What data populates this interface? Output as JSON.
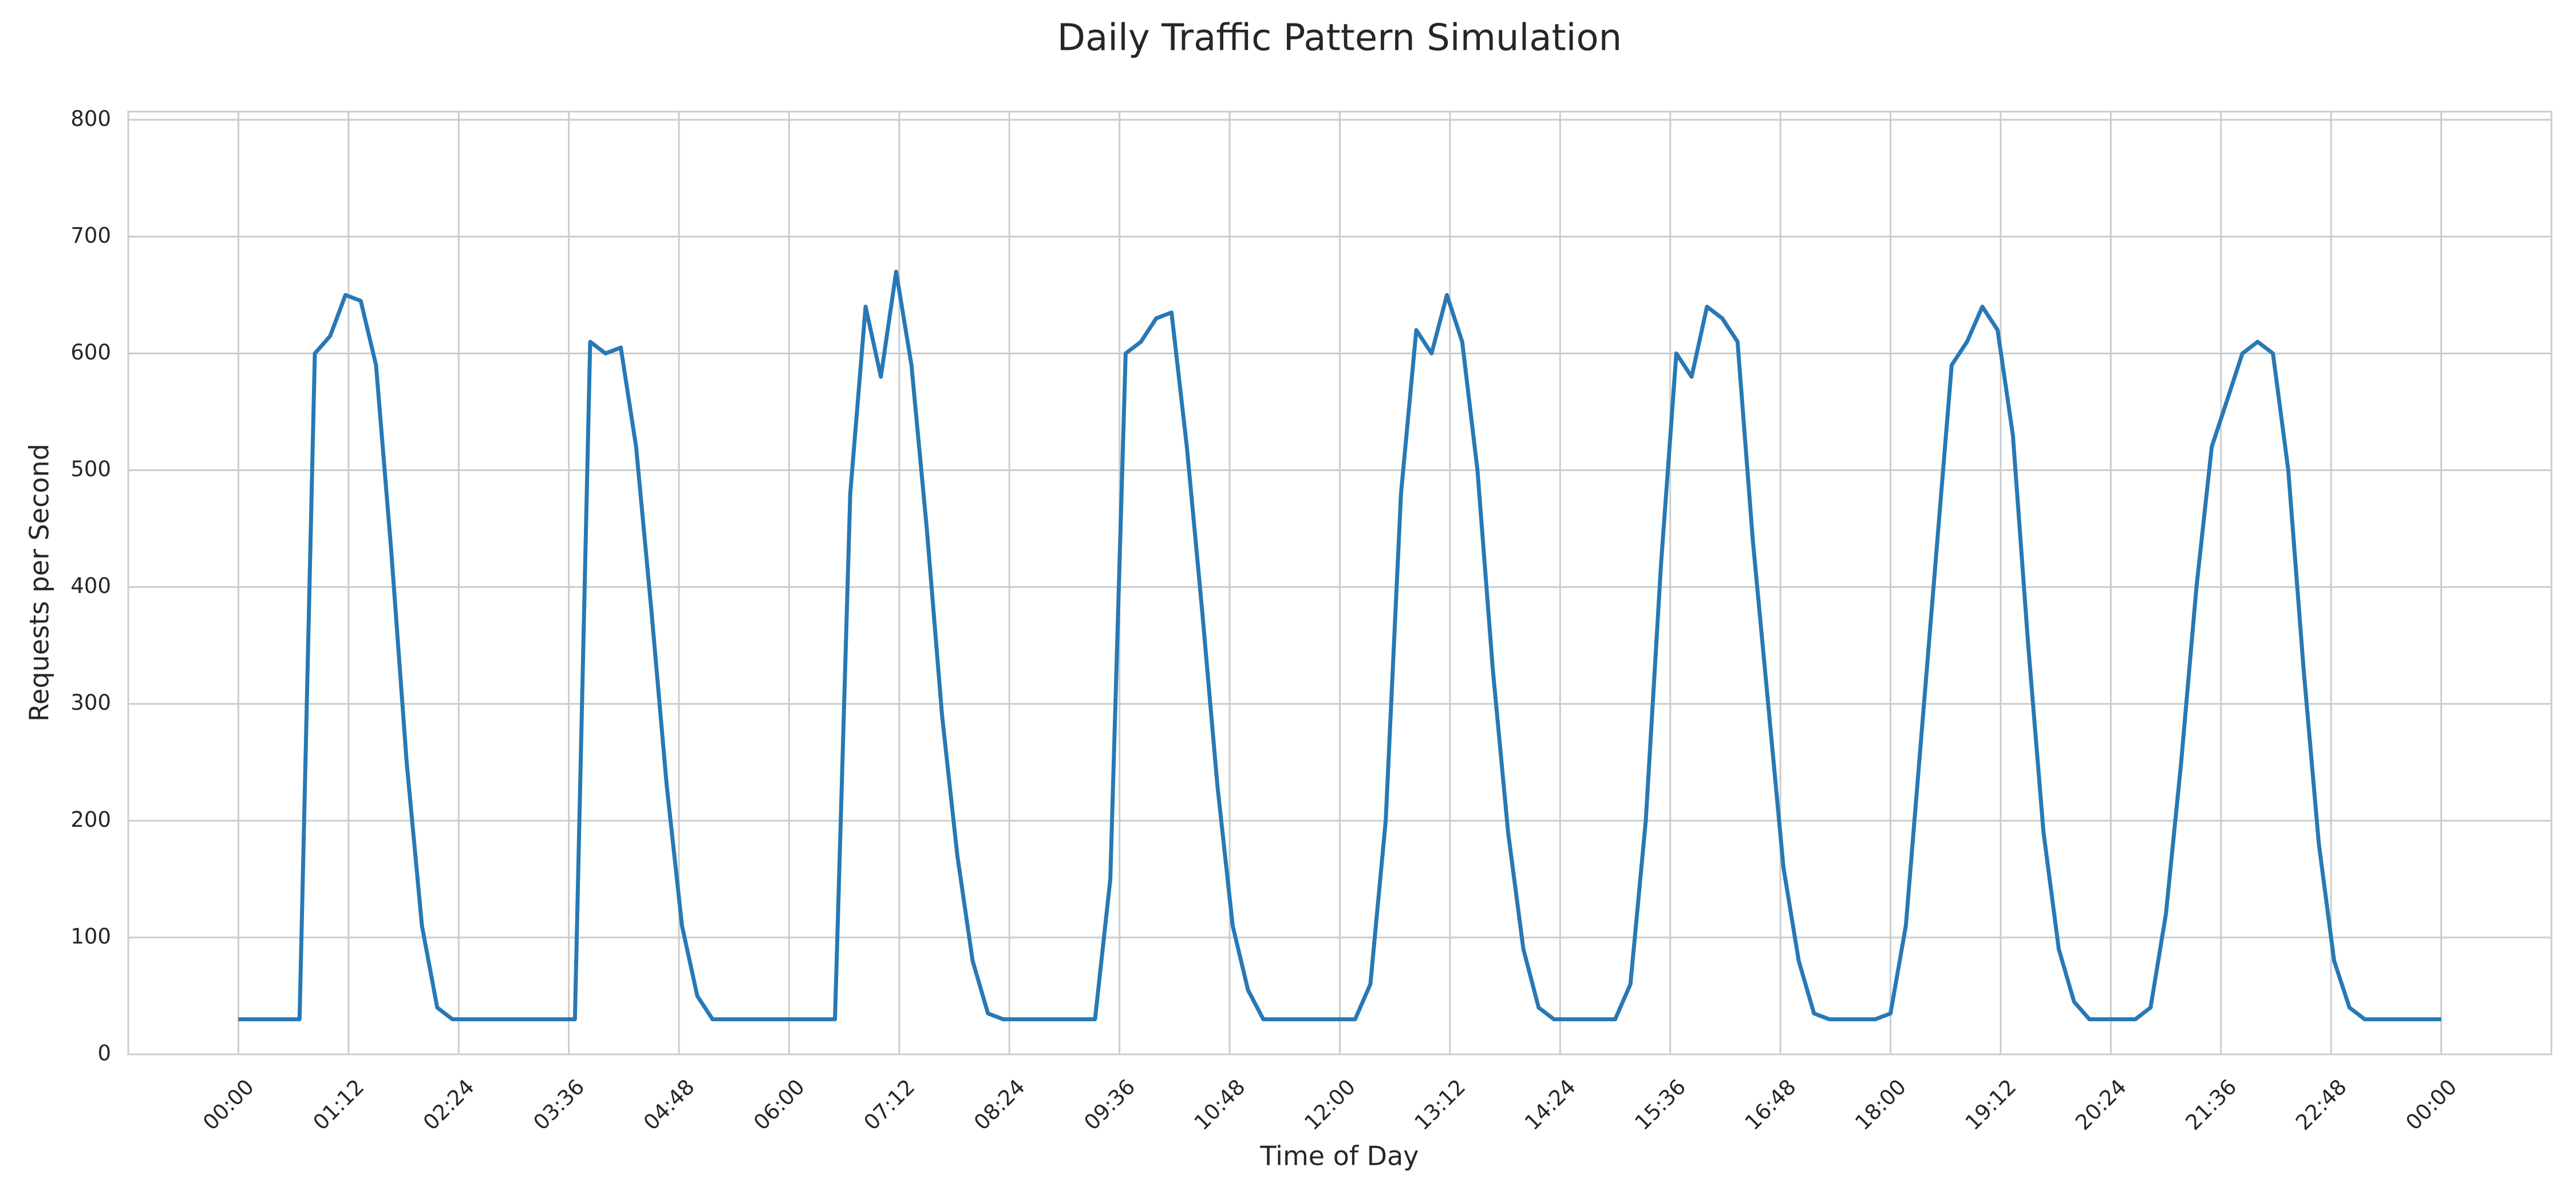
{
  "chart_data": {
    "type": "line",
    "title": "Daily Traffic Pattern Simulation",
    "x_label": "Time of Day",
    "y_label": "Requests per Second",
    "xlim": [
      -72,
      1512
    ],
    "ylim": [
      0,
      807
    ],
    "xticks": [
      {
        "value": 0,
        "label": "00:00"
      },
      {
        "value": 72,
        "label": "01:12"
      },
      {
        "value": 144,
        "label": "02:24"
      },
      {
        "value": 216,
        "label": "03:36"
      },
      {
        "value": 288,
        "label": "04:48"
      },
      {
        "value": 360,
        "label": "06:00"
      },
      {
        "value": 432,
        "label": "07:12"
      },
      {
        "value": 504,
        "label": "08:24"
      },
      {
        "value": 576,
        "label": "09:36"
      },
      {
        "value": 648,
        "label": "10:48"
      },
      {
        "value": 720,
        "label": "12:00"
      },
      {
        "value": 792,
        "label": "13:12"
      },
      {
        "value": 864,
        "label": "14:24"
      },
      {
        "value": 936,
        "label": "15:36"
      },
      {
        "value": 1008,
        "label": "16:48"
      },
      {
        "value": 1080,
        "label": "18:00"
      },
      {
        "value": 1152,
        "label": "19:12"
      },
      {
        "value": 1224,
        "label": "20:24"
      },
      {
        "value": 1296,
        "label": "21:36"
      },
      {
        "value": 1368,
        "label": "22:48"
      },
      {
        "value": 1440,
        "label": "00:00"
      }
    ],
    "yticks": [
      0,
      100,
      200,
      300,
      400,
      500,
      600,
      700,
      800
    ],
    "grid": true,
    "series": [
      {
        "name": "Requests per Second",
        "color": "#2878b5",
        "x": [
          0,
          10,
          20,
          30,
          40,
          50,
          60,
          70,
          80,
          90,
          100,
          110,
          120,
          130,
          140,
          150,
          160,
          170,
          180,
          190,
          200,
          210,
          220,
          230,
          240,
          250,
          260,
          270,
          280,
          290,
          300,
          310,
          320,
          330,
          340,
          350,
          360,
          370,
          380,
          390,
          400,
          410,
          420,
          430,
          440,
          450,
          460,
          470,
          480,
          490,
          500,
          510,
          520,
          530,
          540,
          550,
          560,
          570,
          580,
          590,
          600,
          610,
          620,
          630,
          640,
          650,
          660,
          670,
          680,
          690,
          700,
          710,
          720,
          730,
          740,
          750,
          760,
          770,
          780,
          790,
          800,
          810,
          820,
          830,
          840,
          850,
          860,
          870,
          880,
          890,
          900,
          910,
          920,
          930,
          940,
          950,
          960,
          970,
          980,
          990,
          1000,
          1010,
          1020,
          1030,
          1040,
          1050,
          1060,
          1070,
          1080,
          1090,
          1100,
          1110,
          1120,
          1130,
          1140,
          1150,
          1160,
          1170,
          1180,
          1190,
          1200,
          1210,
          1220,
          1230,
          1240,
          1250,
          1260,
          1270,
          1280,
          1290,
          1300,
          1310,
          1320,
          1330,
          1340,
          1350,
          1360,
          1370,
          1380,
          1390,
          1400,
          1410,
          1420,
          1430,
          1440
        ],
        "values": [
          30,
          30,
          30,
          30,
          30,
          600,
          615,
          650,
          645,
          590,
          430,
          250,
          110,
          40,
          30,
          30,
          30,
          30,
          30,
          30,
          30,
          30,
          30,
          610,
          600,
          605,
          520,
          380,
          230,
          110,
          50,
          30,
          30,
          30,
          30,
          30,
          30,
          30,
          30,
          30,
          480,
          640,
          580,
          670,
          590,
          450,
          290,
          170,
          80,
          35,
          30,
          30,
          30,
          30,
          30,
          30,
          30,
          150,
          600,
          610,
          630,
          635,
          520,
          380,
          230,
          110,
          55,
          30,
          30,
          30,
          30,
          30,
          30,
          30,
          60,
          200,
          480,
          620,
          600,
          650,
          610,
          500,
          330,
          190,
          90,
          40,
          30,
          30,
          30,
          30,
          30,
          60,
          200,
          420,
          600,
          580,
          640,
          630,
          610,
          440,
          300,
          160,
          80,
          35,
          30,
          30,
          30,
          30,
          35,
          110,
          270,
          430,
          590,
          610,
          640,
          620,
          530,
          350,
          190,
          90,
          45,
          30,
          30,
          30,
          30,
          40,
          120,
          250,
          400,
          520,
          560,
          600,
          610,
          600,
          500,
          330,
          180,
          80,
          40,
          30,
          30,
          30,
          30,
          30,
          30
        ]
      }
    ]
  }
}
